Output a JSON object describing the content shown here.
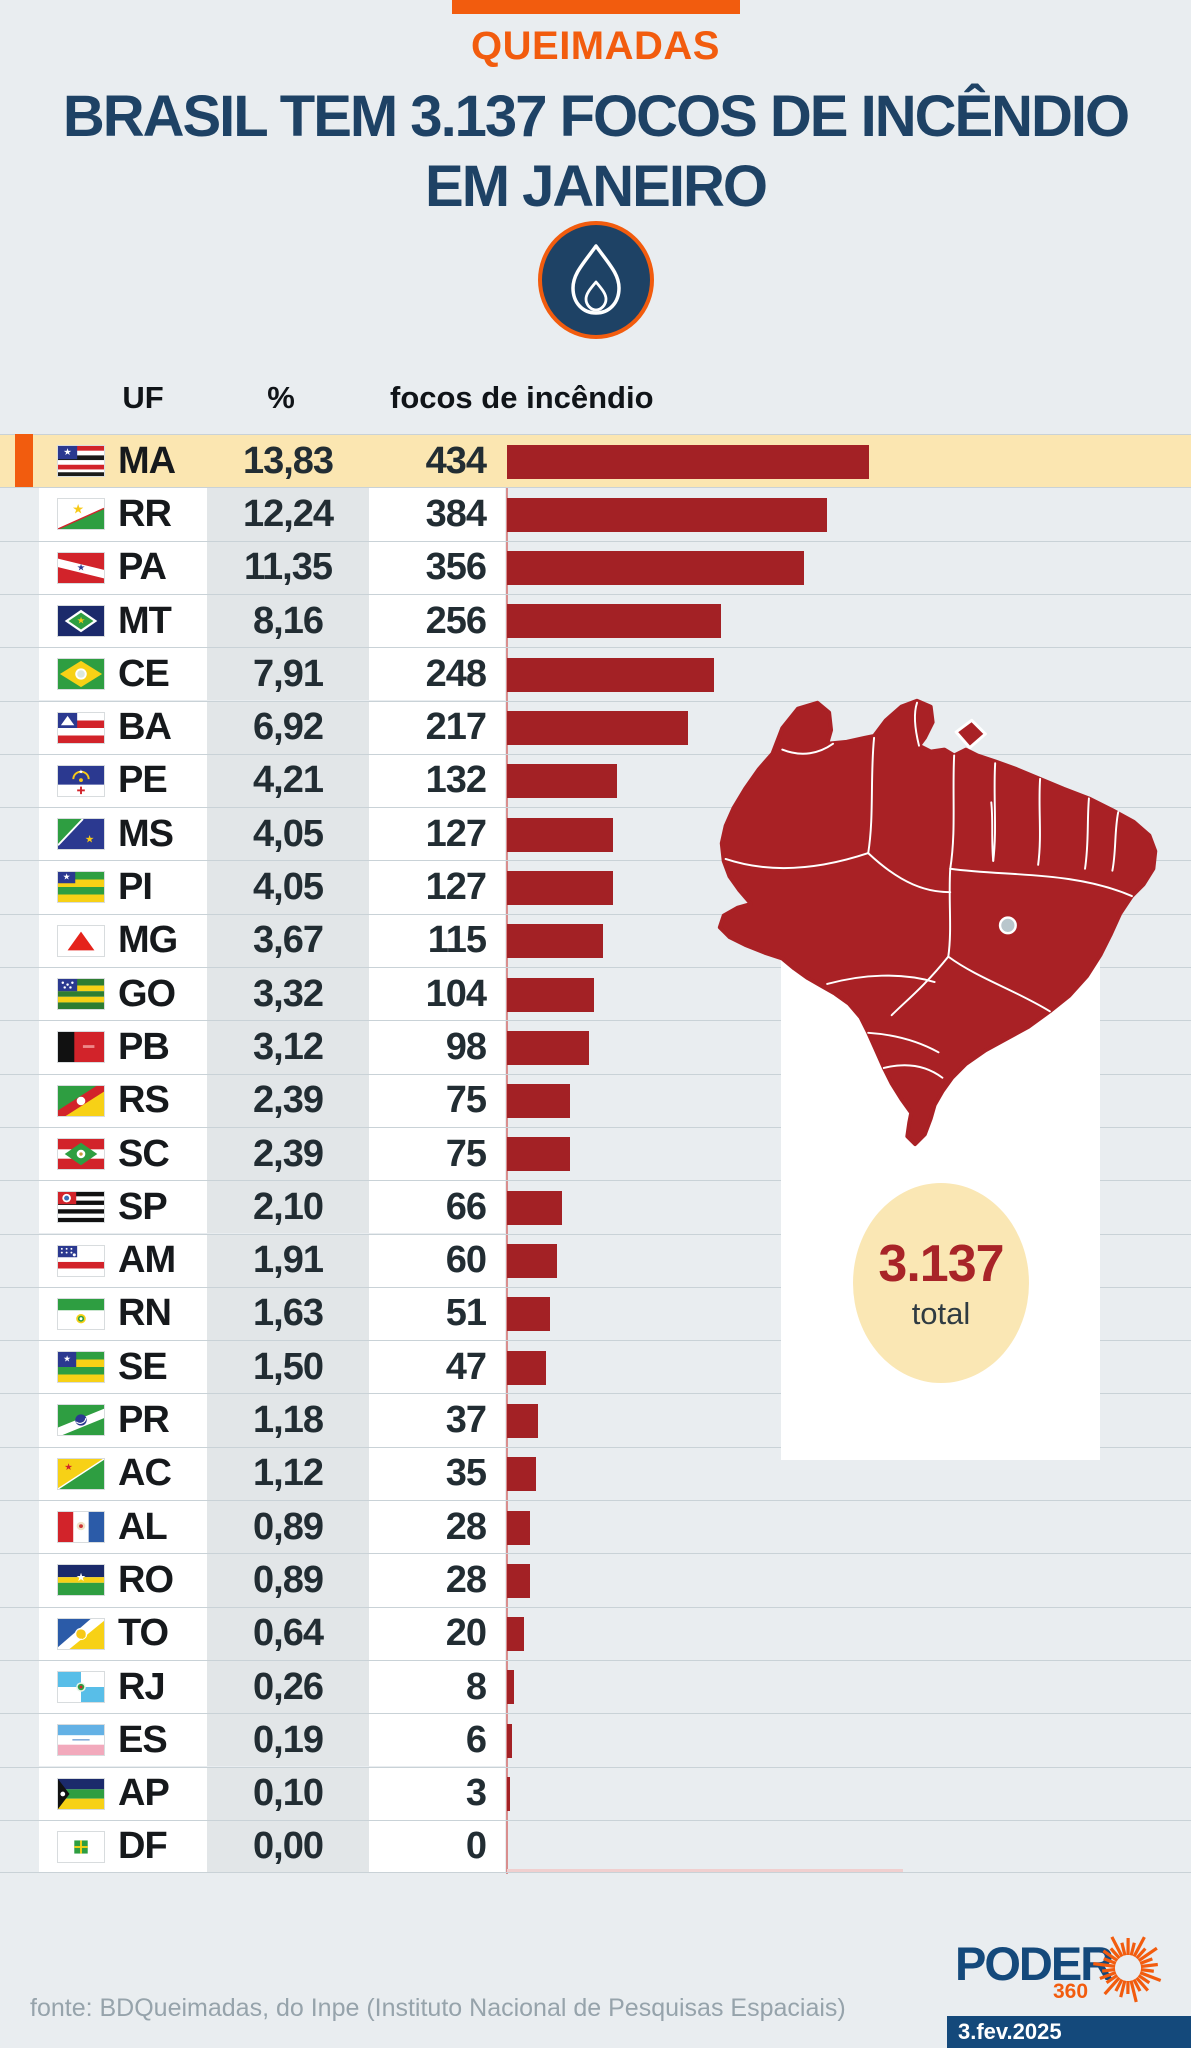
{
  "header": {
    "kicker": "QUEIMADAS",
    "title_line1": "BRASIL TEM 3.137 FOCOS DE INCÊNDIO",
    "title_line2": "EM JANEIRO",
    "accent_color": "#F25C0E",
    "title_color": "#1E4265",
    "flame_icon": "flame-icon"
  },
  "table": {
    "columns": [
      "UF",
      "%",
      "focos de incêndio"
    ],
    "rows": [
      {
        "uf": "MA",
        "pct": "13,83",
        "value": 434,
        "highlight": true
      },
      {
        "uf": "RR",
        "pct": "12,24",
        "value": 384,
        "highlight": false
      },
      {
        "uf": "PA",
        "pct": "11,35",
        "value": 356,
        "highlight": false
      },
      {
        "uf": "MT",
        "pct": "8,16",
        "value": 256,
        "highlight": false
      },
      {
        "uf": "CE",
        "pct": "7,91",
        "value": 248,
        "highlight": false
      },
      {
        "uf": "BA",
        "pct": "6,92",
        "value": 217,
        "highlight": false
      },
      {
        "uf": "PE",
        "pct": "4,21",
        "value": 132,
        "highlight": false
      },
      {
        "uf": "MS",
        "pct": "4,05",
        "value": 127,
        "highlight": false
      },
      {
        "uf": "PI",
        "pct": "4,05",
        "value": 127,
        "highlight": false
      },
      {
        "uf": "MG",
        "pct": "3,67",
        "value": 115,
        "highlight": false
      },
      {
        "uf": "GO",
        "pct": "3,32",
        "value": 104,
        "highlight": false
      },
      {
        "uf": "PB",
        "pct": "3,12",
        "value": 98,
        "highlight": false
      },
      {
        "uf": "RS",
        "pct": "2,39",
        "value": 75,
        "highlight": false
      },
      {
        "uf": "SC",
        "pct": "2,39",
        "value": 75,
        "highlight": false
      },
      {
        "uf": "SP",
        "pct": "2,10",
        "value": 66,
        "highlight": false
      },
      {
        "uf": "AM",
        "pct": "1,91",
        "value": 60,
        "highlight": false
      },
      {
        "uf": "RN",
        "pct": "1,63",
        "value": 51,
        "highlight": false
      },
      {
        "uf": "SE",
        "pct": "1,50",
        "value": 47,
        "highlight": false
      },
      {
        "uf": "PR",
        "pct": "1,18",
        "value": 37,
        "highlight": false
      },
      {
        "uf": "AC",
        "pct": "1,12",
        "value": 35,
        "highlight": false
      },
      {
        "uf": "AL",
        "pct": "0,89",
        "value": 28,
        "highlight": false
      },
      {
        "uf": "RO",
        "pct": "0,89",
        "value": 28,
        "highlight": false
      },
      {
        "uf": "TO",
        "pct": "0,64",
        "value": 20,
        "highlight": false
      },
      {
        "uf": "RJ",
        "pct": "0,26",
        "value": 8,
        "highlight": false
      },
      {
        "uf": "ES",
        "pct": "0,19",
        "value": 6,
        "highlight": false
      },
      {
        "uf": "AP",
        "pct": "0,10",
        "value": 3,
        "highlight": false
      },
      {
        "uf": "DF",
        "pct": "0,00",
        "value": 0,
        "highlight": false
      }
    ]
  },
  "chart_data": {
    "type": "bar",
    "title": "BRASIL TEM 3.137 FOCOS DE INCÊNDIO EM JANEIRO",
    "subtitle": "QUEIMADAS",
    "categories": [
      "MA",
      "RR",
      "PA",
      "MT",
      "CE",
      "BA",
      "PE",
      "MS",
      "PI",
      "MG",
      "GO",
      "PB",
      "RS",
      "SC",
      "SP",
      "AM",
      "RN",
      "SE",
      "PR",
      "AC",
      "AL",
      "RO",
      "TO",
      "RJ",
      "ES",
      "AP",
      "DF"
    ],
    "series": [
      {
        "name": "%",
        "values": [
          13.83,
          12.24,
          11.35,
          8.16,
          7.91,
          6.92,
          4.21,
          4.05,
          4.05,
          3.67,
          3.32,
          3.12,
          2.39,
          2.39,
          2.1,
          1.91,
          1.63,
          1.5,
          1.18,
          1.12,
          0.89,
          0.89,
          0.64,
          0.26,
          0.19,
          0.1,
          0.0
        ]
      },
      {
        "name": "focos de incêndio",
        "values": [
          434,
          384,
          356,
          256,
          248,
          217,
          132,
          127,
          127,
          115,
          104,
          98,
          75,
          75,
          66,
          60,
          51,
          47,
          37,
          35,
          28,
          28,
          20,
          8,
          6,
          3,
          0
        ]
      }
    ],
    "total": 3137,
    "highlight_category": "MA",
    "bar_color": "#A32125",
    "highlight_row_color": "#FBE6B1",
    "orientation": "horizontal",
    "xlim": [
      0,
      434
    ],
    "legend": "none",
    "grid": "row-separators"
  },
  "map_panel": {
    "total_value": "3.137",
    "total_label": "total",
    "map_fill": "#A92125",
    "capital_dot": "brasilia-dot"
  },
  "footer": {
    "source": "fonte: BDQueimadas, do Inpe (Instituto Nacional de Pesquisas Espaciais)",
    "logo_text": "PODER",
    "logo_sub": "360",
    "date": "3.fev.2025"
  }
}
